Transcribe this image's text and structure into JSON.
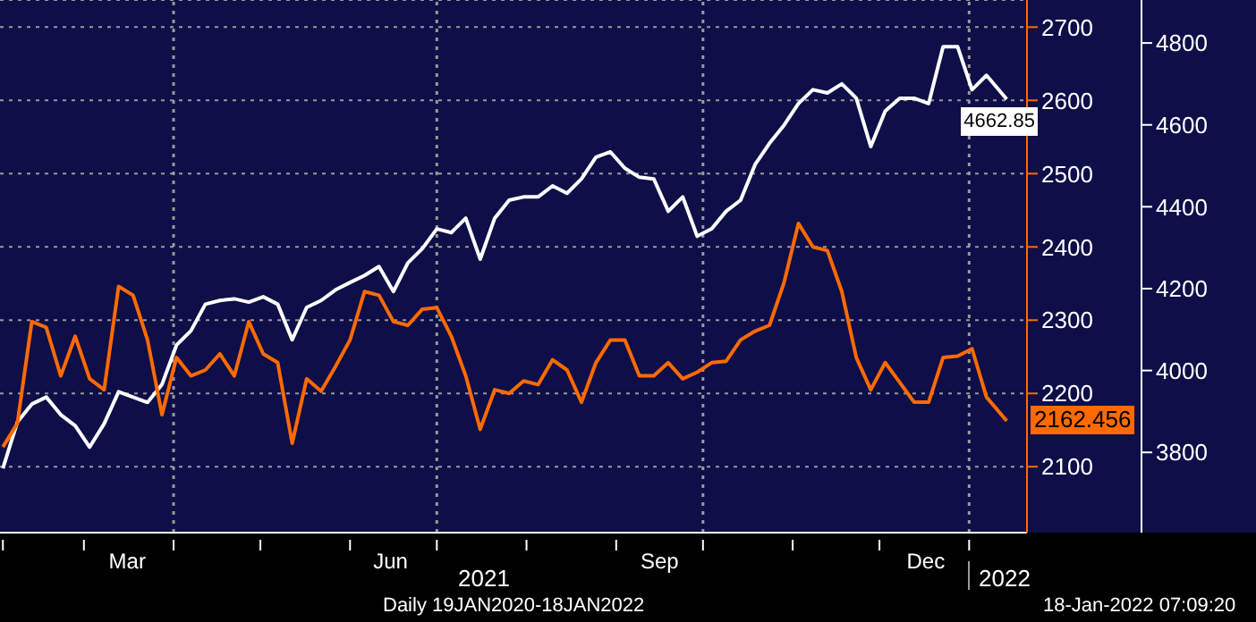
{
  "chart_data": {
    "type": "line",
    "x": [
      "2021-02-01",
      "2021-02-06",
      "2021-02-11",
      "2021-02-16",
      "2021-02-21",
      "2021-02-26",
      "2021-03-03",
      "2021-03-08",
      "2021-03-13",
      "2021-03-18",
      "2021-03-23",
      "2021-03-28",
      "2021-04-02",
      "2021-04-07",
      "2021-04-12",
      "2021-04-17",
      "2021-04-22",
      "2021-04-27",
      "2021-05-02",
      "2021-05-07",
      "2021-05-12",
      "2021-05-17",
      "2021-05-22",
      "2021-05-27",
      "2021-06-01",
      "2021-06-06",
      "2021-06-11",
      "2021-06-16",
      "2021-06-21",
      "2021-06-26",
      "2021-07-01",
      "2021-07-06",
      "2021-07-11",
      "2021-07-16",
      "2021-07-21",
      "2021-07-26",
      "2021-07-31",
      "2021-08-05",
      "2021-08-10",
      "2021-08-15",
      "2021-08-20",
      "2021-08-25",
      "2021-08-30",
      "2021-09-04",
      "2021-09-09",
      "2021-09-14",
      "2021-09-19",
      "2021-09-24",
      "2021-09-29",
      "2021-10-04",
      "2021-10-09",
      "2021-10-14",
      "2021-10-19",
      "2021-10-24",
      "2021-10-29",
      "2021-11-03",
      "2021-11-08",
      "2021-11-13",
      "2021-11-18",
      "2021-11-23",
      "2021-11-28",
      "2021-12-03",
      "2021-12-08",
      "2021-12-13",
      "2021-12-18",
      "2021-12-23",
      "2021-12-28",
      "2022-01-02",
      "2022-01-07",
      "2022-01-14"
    ],
    "series": [
      {
        "color": "#ffffff",
        "axis": "y2",
        "values": [
          3761,
          3874,
          3918,
          3935,
          3892,
          3865,
          3813,
          3870,
          3948,
          3935,
          3922,
          3966,
          4062,
          4097,
          4162,
          4171,
          4175,
          4167,
          4180,
          4162,
          4075,
          4154,
          4171,
          4197,
          4215,
          4232,
          4254,
          4193,
          4263,
          4298,
          4346,
          4337,
          4372,
          4272,
          4372,
          4416,
          4424,
          4424,
          4451,
          4433,
          4468,
          4521,
          4534,
          4494,
          4472,
          4468,
          4389,
          4424,
          4328,
          4346,
          4389,
          4416,
          4503,
          4555,
          4599,
          4652,
          4686,
          4678,
          4700,
          4665,
          4547,
          4634,
          4665,
          4665,
          4652,
          4791,
          4791,
          4686,
          4721,
          4662.85
        ],
        "value_labels": [
          null,
          null,
          null,
          null,
          null,
          null,
          null,
          null,
          null,
          null,
          null,
          null,
          null,
          null,
          null,
          null,
          null,
          null,
          null,
          null,
          null,
          null,
          null,
          null,
          null,
          null,
          null,
          null,
          null,
          null,
          null,
          null,
          null,
          null,
          null,
          null,
          null,
          null,
          null,
          null,
          null,
          null,
          null,
          null,
          null,
          null,
          null,
          null,
          null,
          null,
          null,
          null,
          null,
          null,
          null,
          null,
          null,
          null,
          null,
          null,
          null,
          null,
          null,
          null,
          null,
          null,
          null,
          null,
          null,
          "4662.85"
        ]
      },
      {
        "color": "#ff6a00",
        "axis": "y",
        "values": [
          2127,
          2159,
          2298,
          2290,
          2224,
          2278,
          2220,
          2205,
          2346,
          2334,
          2273,
          2171,
          2249,
          2224,
          2232,
          2254,
          2224,
          2298,
          2254,
          2242,
          2132,
          2220,
          2203,
          2237,
          2273,
          2339,
          2334,
          2298,
          2293,
          2315,
          2317,
          2278,
          2224,
          2151,
          2205,
          2200,
          2217,
          2212,
          2246,
          2232,
          2188,
          2242,
          2273,
          2273,
          2224,
          2224,
          2242,
          2220,
          2229,
          2242,
          2244,
          2273,
          2285,
          2293,
          2351,
          2432,
          2400,
          2395,
          2339,
          2249,
          2205,
          2242,
          2215,
          2188,
          2188,
          2249,
          2251,
          2261,
          2195,
          2162.456
        ],
        "value_labels": [
          null,
          null,
          null,
          null,
          null,
          null,
          null,
          null,
          null,
          null,
          null,
          null,
          null,
          null,
          null,
          null,
          null,
          null,
          null,
          null,
          null,
          null,
          null,
          null,
          null,
          null,
          null,
          null,
          null,
          null,
          null,
          null,
          null,
          null,
          null,
          null,
          null,
          null,
          null,
          null,
          null,
          null,
          null,
          null,
          null,
          null,
          null,
          null,
          null,
          null,
          null,
          null,
          null,
          null,
          null,
          null,
          null,
          null,
          null,
          null,
          null,
          null,
          null,
          null,
          null,
          null,
          null,
          null,
          null,
          "2162.456"
        ]
      }
    ],
    "xlim": [
      "2021-01-31",
      "2022-01-21"
    ],
    "xticks": [
      {
        "value": "2021-02-01",
        "label": null
      },
      {
        "value": "2021-03-01",
        "label": null
      },
      {
        "value": "2021-03-16",
        "label": "Mar"
      },
      {
        "value": "2021-04-01",
        "label": null
      },
      {
        "value": "2021-05-01",
        "label": null
      },
      {
        "value": "2021-06-01",
        "label": null
      },
      {
        "value": "2021-06-15",
        "label": "Jun"
      },
      {
        "value": "2021-07-01",
        "label": null
      },
      {
        "value": "2021-08-01",
        "label": null
      },
      {
        "value": "2021-09-01",
        "label": null
      },
      {
        "value": "2021-09-16",
        "label": "Sep"
      },
      {
        "value": "2021-10-01",
        "label": null
      },
      {
        "value": "2021-11-01",
        "label": null
      },
      {
        "value": "2021-12-01",
        "label": null
      },
      {
        "value": "2021-12-17",
        "label": "Dec"
      },
      {
        "value": "2022-01-01",
        "label": null
      }
    ],
    "ylim": [
      2010,
      2737
    ],
    "yticks": [
      2100,
      2200,
      2300,
      2400,
      2500,
      2600,
      2700
    ],
    "y2lim": [
      3604,
      4905
    ],
    "y2ticks": [
      3800,
      4000,
      4200,
      4400,
      4600,
      4800
    ],
    "grid": "y",
    "ref_lines": [
      {
        "axis": "x",
        "value": "2021-04-01",
        "color": "#9a9a9a",
        "line_style": "dotted"
      },
      {
        "axis": "x",
        "value": "2021-07-01",
        "color": "#9a9a9a",
        "line_style": "dotted"
      },
      {
        "axis": "x",
        "value": "2021-10-01",
        "color": "#9a9a9a",
        "line_style": "dotted"
      },
      {
        "axis": "x",
        "value": "2022-01-01",
        "color": "#9a9a9a",
        "line_style": "dotted"
      }
    ],
    "annotations": [
      "2021",
      "2022",
      "Daily 19JAN2020-18JAN2022",
      "18-Jan-2022 07:09:20"
    ]
  }
}
